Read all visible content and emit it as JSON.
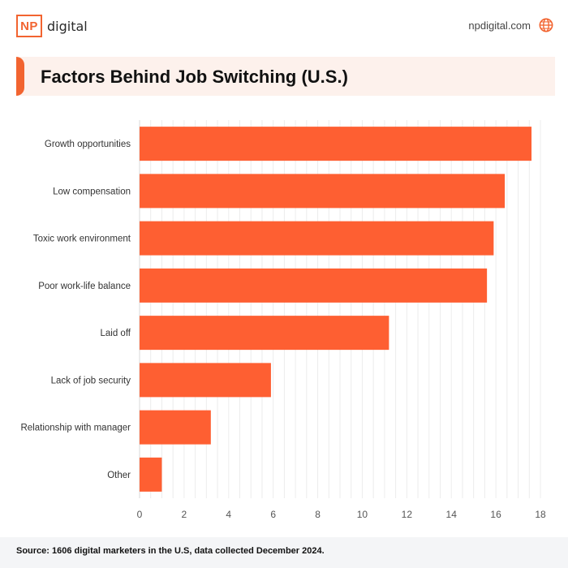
{
  "brand": {
    "logo_mark": "NP",
    "logo_text": "digital",
    "site_url": "npdigital.com",
    "site_icon": "globe-icon"
  },
  "title": "Factors Behind Job Switching (U.S.)",
  "source": "Source: 1606 digital marketers in the U.S, data collected December 2024.",
  "colors": {
    "accent": "#f26430",
    "bar": "#fe5f32",
    "title_band": "#fdf1ec",
    "footer": "#f4f5f7"
  },
  "chart_data": {
    "type": "bar",
    "orientation": "horizontal",
    "categories": [
      "Growth opportunities",
      "Low compensation",
      "Toxic work environment",
      "Poor work-life balance",
      "Laid off",
      "Lack of job security",
      "Relationship with manager",
      "Other"
    ],
    "values": [
      17.6,
      16.4,
      15.9,
      15.6,
      11.2,
      5.9,
      3.2,
      1.0
    ],
    "xlim": [
      0,
      18
    ],
    "xticks": [
      0,
      2,
      4,
      6,
      8,
      10,
      12,
      14,
      16,
      18
    ],
    "grid": true
  }
}
